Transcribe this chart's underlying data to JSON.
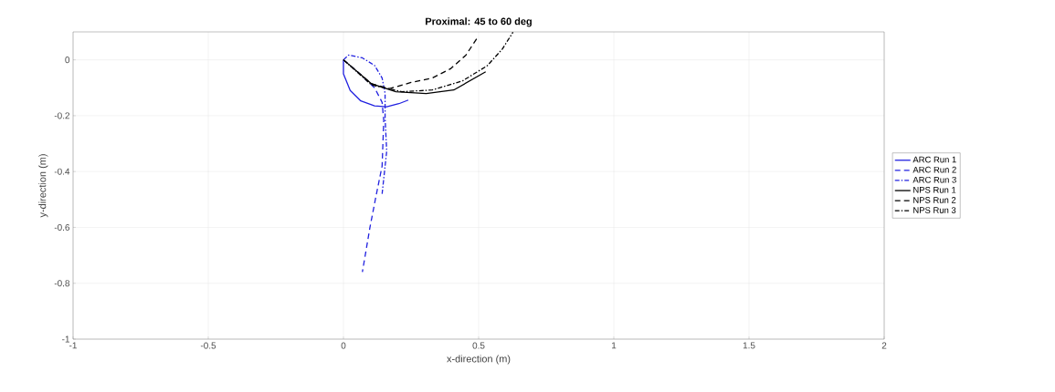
{
  "chart_data": {
    "type": "line",
    "title": "Proximal: 45 to 60 deg",
    "xlabel": "x-direction (m)",
    "ylabel": "y-direction (m)",
    "xlim": [
      -1,
      2
    ],
    "ylim": [
      -1,
      0.1
    ],
    "xticks": [
      -1,
      -0.5,
      0,
      0.5,
      1,
      1.5,
      2
    ],
    "yticks": [
      -1,
      -0.8,
      -0.6,
      -0.4,
      -0.2,
      0
    ],
    "grid": true,
    "legend": "right",
    "series": [
      {
        "name": "ARC Run 1",
        "color": "#2020e0",
        "line_style": "solid",
        "x": [
          0,
          0.0,
          0.025,
          0.064,
          0.115,
          0.16,
          0.205,
          0.24
        ],
        "values": [
          0,
          -0.05,
          -0.11,
          -0.147,
          -0.165,
          -0.168,
          -0.157,
          -0.144
        ]
      },
      {
        "name": "ARC Run 2",
        "color": "#2020e0",
        "line_style": "dashed",
        "x": [
          0,
          0.06,
          0.115,
          0.143,
          0.149,
          0.143,
          0.12,
          0.098,
          0.07
        ],
        "values": [
          0,
          -0.05,
          -0.1,
          -0.152,
          -0.217,
          -0.38,
          -0.49,
          -0.6,
          -0.76
        ]
      },
      {
        "name": "ARC Run 3",
        "color": "#2020e0",
        "line_style": "dashdot",
        "x": [
          0,
          0.019,
          0.07,
          0.115,
          0.143,
          0.154,
          0.154,
          0.16,
          0.143
        ],
        "values": [
          0,
          0.017,
          0.007,
          -0.02,
          -0.065,
          -0.12,
          -0.207,
          -0.327,
          -0.48
        ]
      },
      {
        "name": "NPS Run 1",
        "color": "#000000",
        "line_style": "solid",
        "x": [
          0,
          0.104,
          0.194,
          0.306,
          0.408,
          0.526
        ],
        "values": [
          0,
          -0.086,
          -0.114,
          -0.121,
          -0.108,
          -0.043
        ]
      },
      {
        "name": "NPS Run 2",
        "color": "#000000",
        "line_style": "dashed",
        "x": [
          0,
          0.104,
          0.171,
          0.25,
          0.329,
          0.396,
          0.453,
          0.498
        ],
        "values": [
          0,
          -0.086,
          -0.103,
          -0.081,
          -0.065,
          -0.032,
          0.017,
          0.083
        ]
      },
      {
        "name": "NPS Run 3",
        "color": "#000000",
        "line_style": "dashdot",
        "x": [
          0,
          0.104,
          0.216,
          0.329,
          0.441,
          0.532,
          0.588,
          0.627
        ],
        "values": [
          0,
          -0.09,
          -0.114,
          -0.108,
          -0.075,
          -0.021,
          0.039,
          0.099
        ]
      }
    ]
  }
}
